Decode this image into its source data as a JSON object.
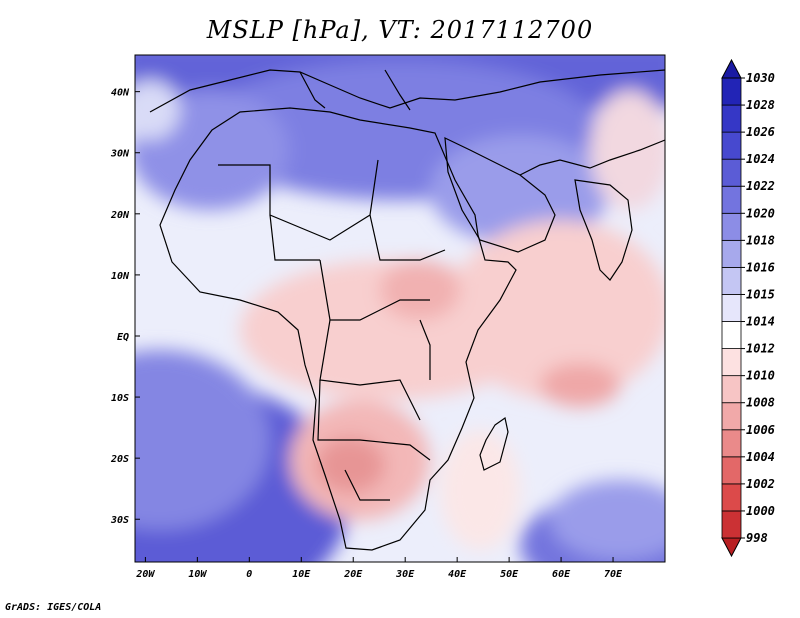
{
  "title": "MSLP [hPa], VT: 2017112700",
  "credit": "GrADS: IGES/COLA",
  "map": {
    "lon_labels": [
      "20W",
      "10W",
      "0",
      "10E",
      "20E",
      "30E",
      "40E",
      "50E",
      "60E",
      "70E"
    ],
    "lat_labels": [
      "40N",
      "30N",
      "20N",
      "10N",
      "EQ",
      "10S",
      "20S",
      "30S"
    ],
    "lon_range": [
      -22,
      80
    ],
    "lat_range": [
      -37,
      46
    ]
  },
  "colorbar": {
    "levels": [
      "998",
      "1000",
      "1002",
      "1004",
      "1006",
      "1008",
      "1010",
      "1012",
      "1014",
      "1015",
      "1016",
      "1018",
      "1020",
      "1022",
      "1024",
      "1026",
      "1028",
      "1030"
    ],
    "colors": [
      "#b81f22",
      "#cb3134",
      "#dc4a4a",
      "#e36868",
      "#ea8a8a",
      "#f1a9a9",
      "#f7c5c5",
      "#fde1e1",
      "#ffffff",
      "#e6e6fb",
      "#c4c6f3",
      "#a7a9ec",
      "#8c8de6",
      "#7374df",
      "#5b5cd6",
      "#4749cf",
      "#3537c6",
      "#2224b6",
      "#1a1aa3"
    ]
  },
  "colors": {
    "ocean_high": "#5b5cd6",
    "land_low": "#f7c5c5",
    "coast": "#000000"
  }
}
